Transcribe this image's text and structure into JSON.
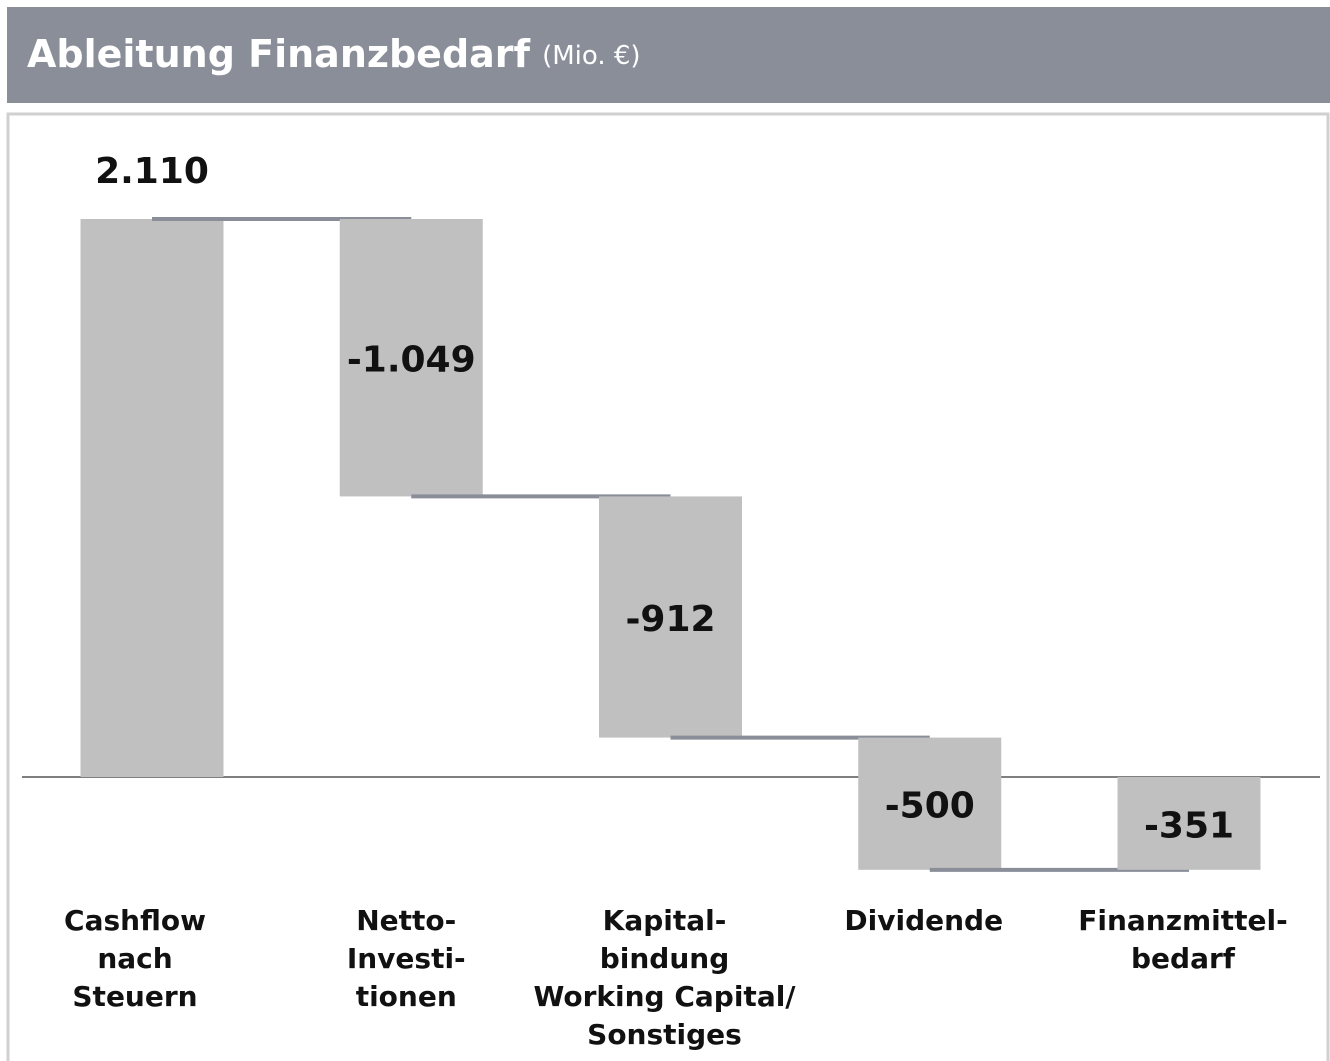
{
  "chart_data": {
    "type": "waterfall",
    "title": "Ableitung Finanzbedarf",
    "subtitle": "(Mio. €)",
    "categories": [
      [
        "Cashflow",
        "nach",
        "Steuern"
      ],
      [
        "Netto-",
        "Investi-",
        "tionen"
      ],
      [
        "Kapital-",
        "bindung",
        "Working Capital/",
        "Sonstiges"
      ],
      [
        "Dividende"
      ],
      [
        "Finanzmittel-",
        "bedarf"
      ]
    ],
    "values": [
      2110,
      -1049,
      -912,
      -500,
      -351
    ],
    "value_labels": [
      "2.110",
      "-1.049",
      "-912",
      "-500",
      "-351"
    ],
    "color": "#c0c0c0",
    "connector_color": "#8a8e99"
  }
}
